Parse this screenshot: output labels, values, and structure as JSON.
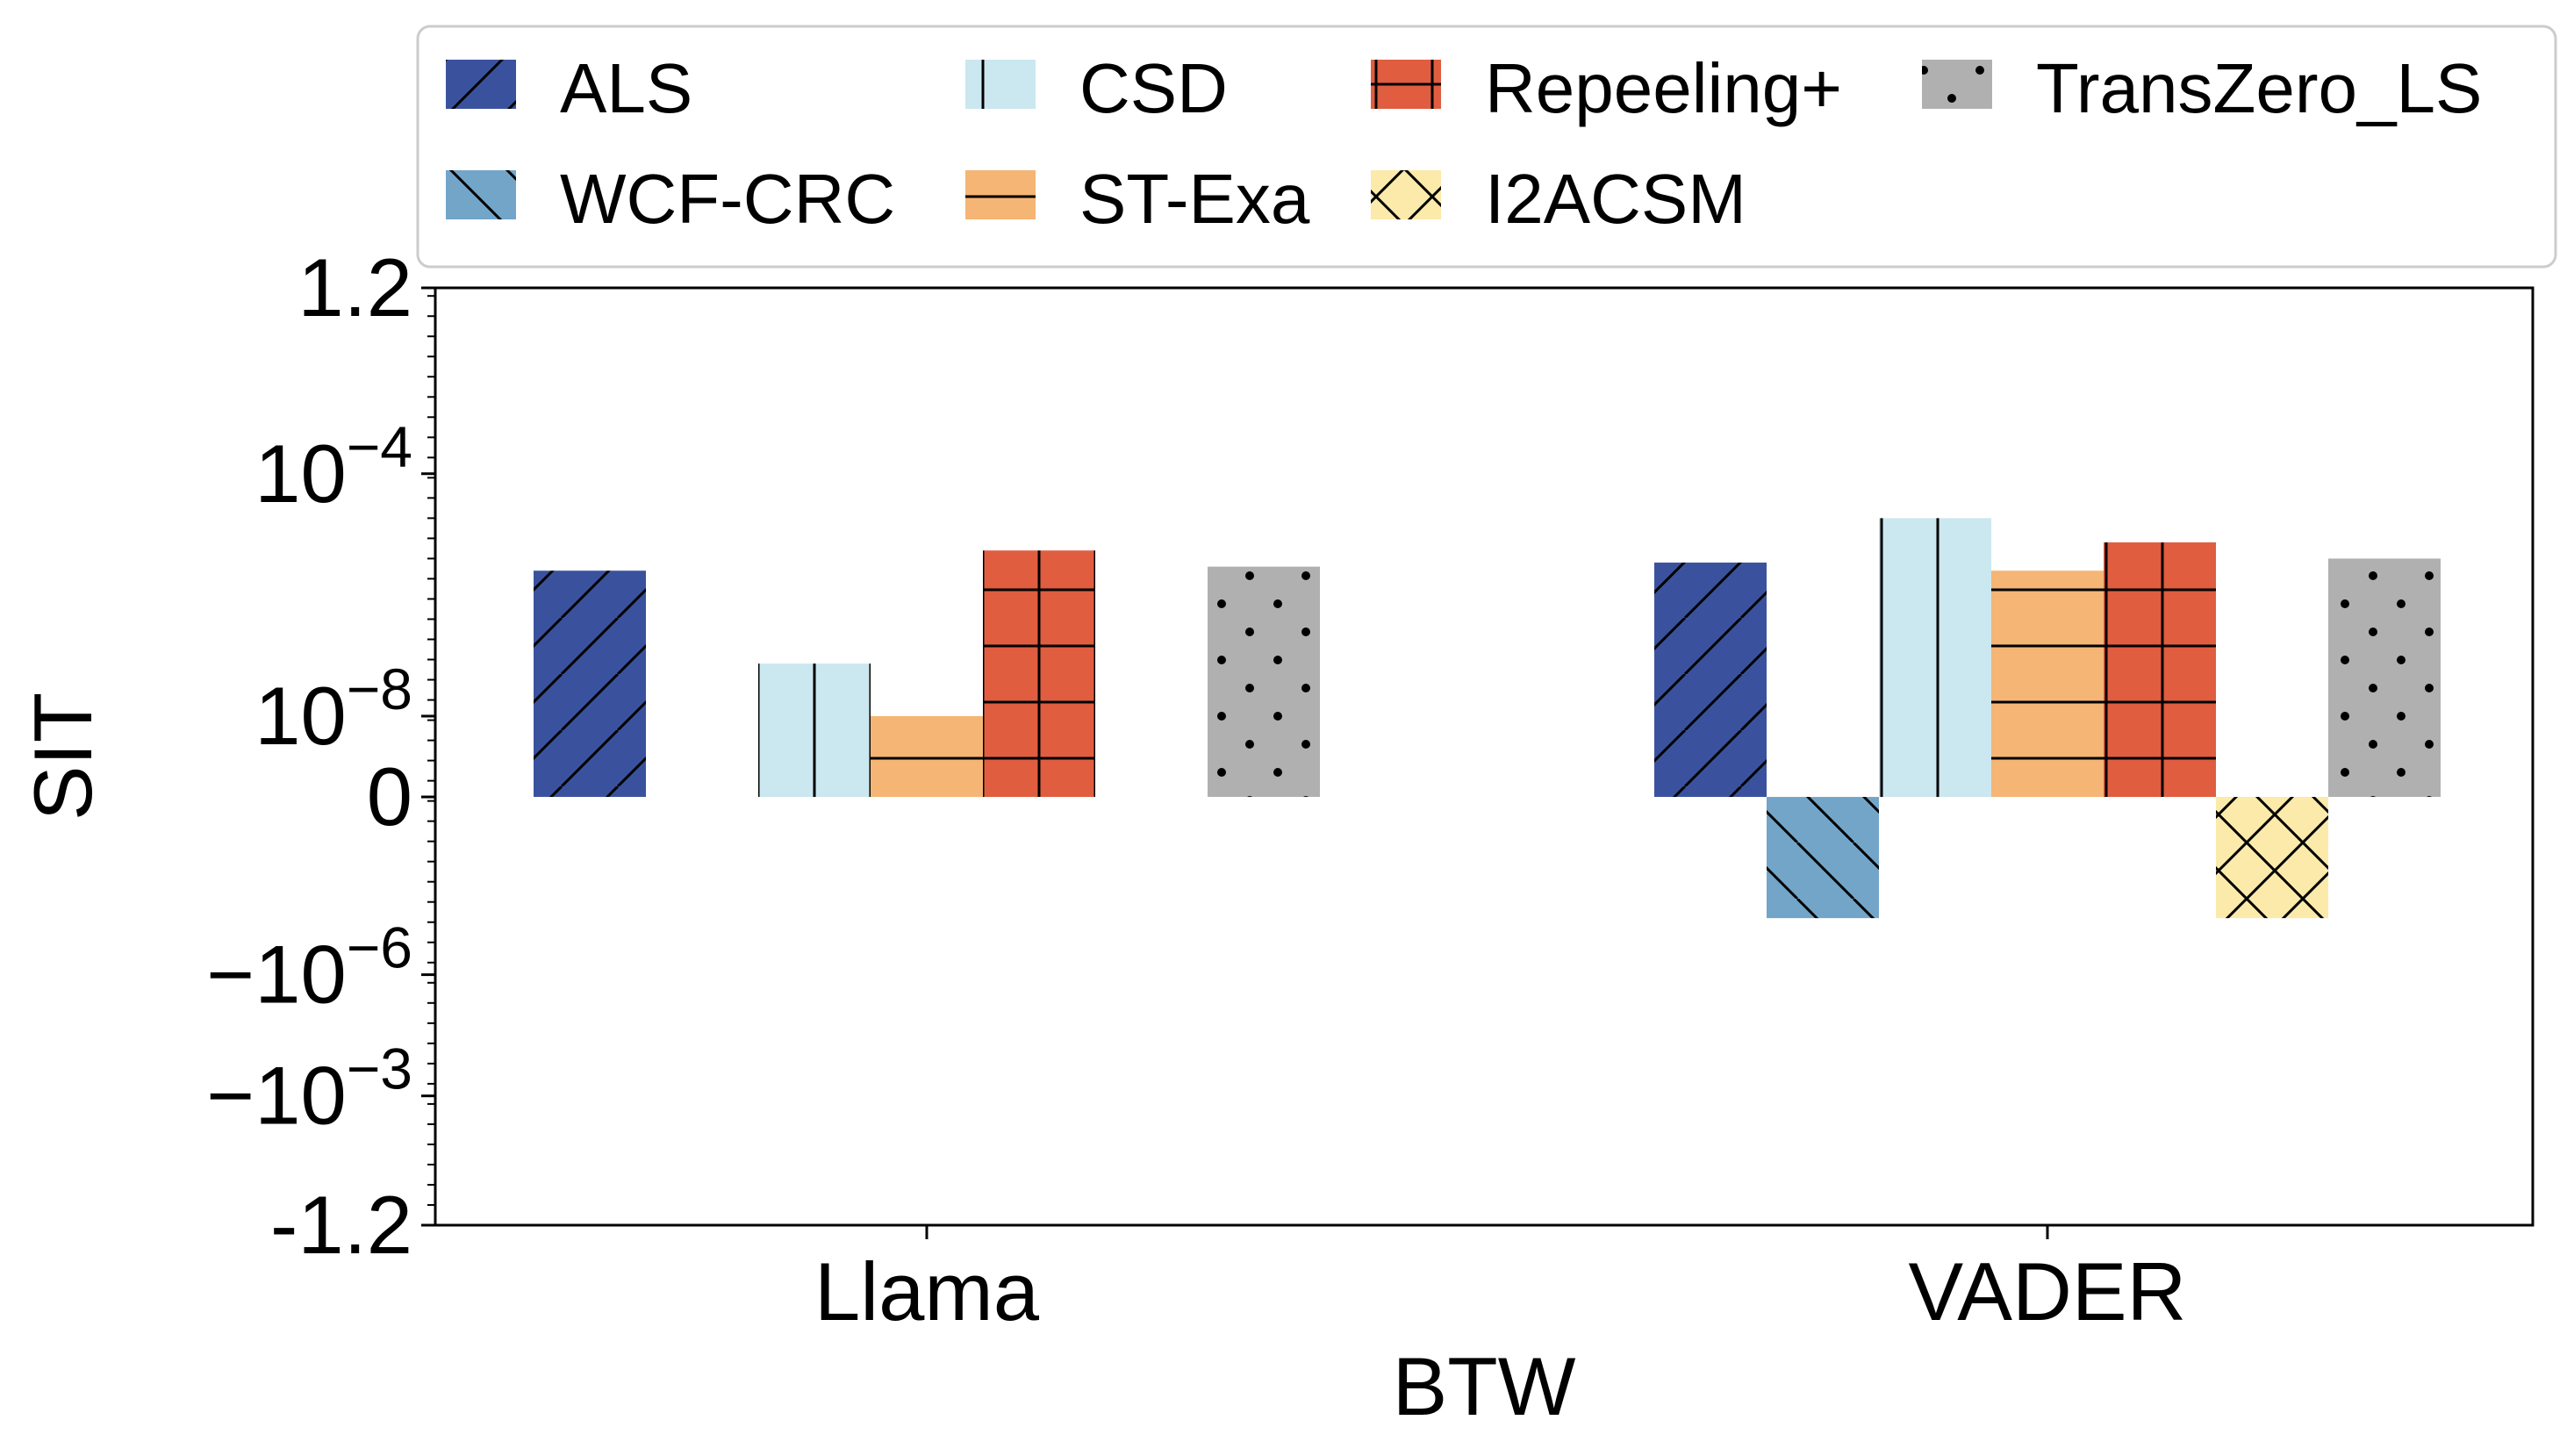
{
  "chart_data": {
    "type": "bar",
    "xlabel": "BTW",
    "ylabel": "SIT",
    "categories": [
      "Llama",
      "VADER"
    ],
    "yscale": "symlog",
    "y_ticks": [
      {
        "label": "1.2",
        "base": "",
        "exp": "",
        "v": 6.3
      },
      {
        "label": "",
        "base": "10",
        "exp": "−4",
        "v": 4.0
      },
      {
        "label": "",
        "base": "10",
        "exp": "−8",
        "v": 1.0
      },
      {
        "label": "0",
        "base": "",
        "exp": "",
        "v": 0
      },
      {
        "label": "",
        "base": "−10",
        "exp": "−6",
        "v": -2.2
      },
      {
        "label": "",
        "base": "−10",
        "exp": "−3",
        "v": -3.7
      },
      {
        "label": "-1.2",
        "base": "",
        "exp": "",
        "v": -5.3
      }
    ],
    "ylim": [
      -5.3,
      6.3
    ],
    "legend_placement": "top",
    "series": [
      {
        "name": "ALS",
        "color": "#3a529e",
        "hatch": "slash",
        "values": [
          2.8,
          2.9
        ]
      },
      {
        "name": "WCF-CRC",
        "color": "#73a5c9",
        "hatch": "backslash",
        "values": [
          0,
          -1.5
        ]
      },
      {
        "name": "CSD",
        "color": "#cbe7ef",
        "hatch": "vertical",
        "values": [
          1.65,
          3.45
        ]
      },
      {
        "name": "ST-Exa",
        "color": "#f5b574",
        "hatch": "horizontal",
        "values": [
          1.0,
          2.8
        ]
      },
      {
        "name": "Repeeling+",
        "color": "#e05d40",
        "hatch": "grid",
        "values": [
          3.05,
          3.15
        ]
      },
      {
        "name": "I2ACSM",
        "color": "#fbeaa9",
        "hatch": "cross",
        "values": [
          0,
          -1.5
        ]
      },
      {
        "name": "TransZero_LS",
        "color": "#b0b0b0",
        "hatch": "dots",
        "values": [
          2.85,
          2.95
        ]
      }
    ]
  }
}
